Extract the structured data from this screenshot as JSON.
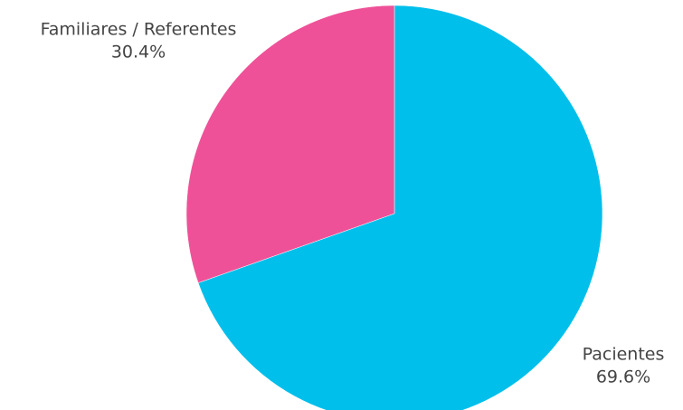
{
  "chart_data": {
    "type": "pie",
    "categories": [
      "Pacientes",
      "Familiares / Referentes"
    ],
    "values": [
      69.6,
      30.4
    ],
    "value_labels": [
      "69.6%",
      "30.4%"
    ],
    "colors": [
      "#00bfeb",
      "#ef5198"
    ],
    "start_angle": 0,
    "direction": "clockwise"
  }
}
